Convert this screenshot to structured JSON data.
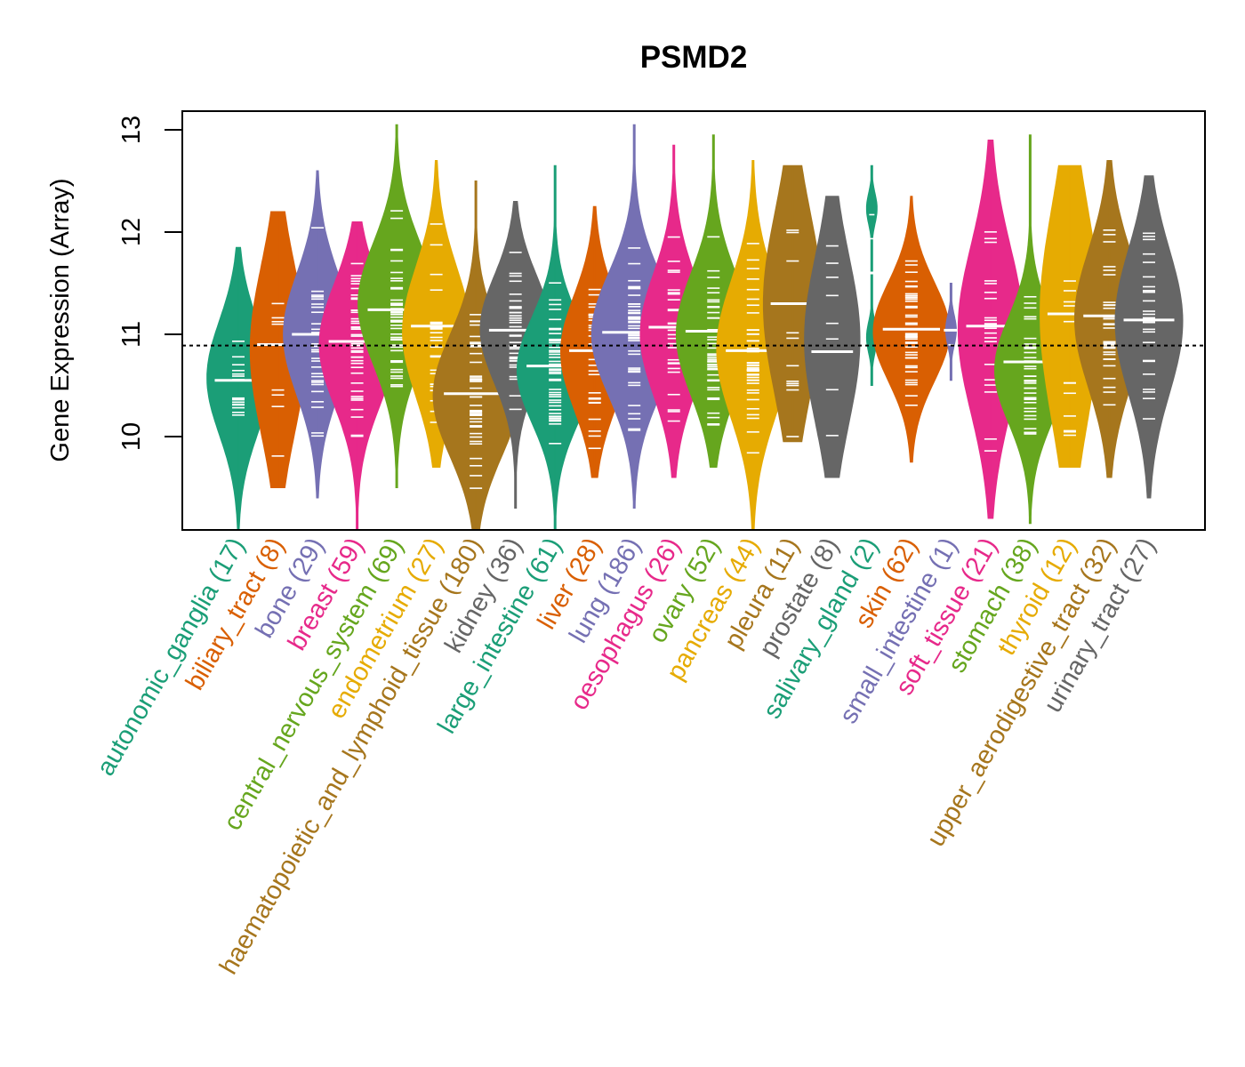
{
  "chart_data": {
    "type": "violin",
    "title": "PSMD2",
    "xlabel": "",
    "ylabel": "Gene Expression (Array)",
    "ylim": [
      9.1,
      13.2
    ],
    "yticks": [
      10,
      11,
      12,
      13
    ],
    "reference_line": 10.89,
    "grid": false,
    "legend": "none",
    "categories": [
      {
        "name": "autonomic_ganglia",
        "n": 17,
        "label": "autonomic_ganglia (17)",
        "color": "#1B9E77",
        "min": 9.1,
        "max": 11.85,
        "median": 10.55,
        "q1": 10.2,
        "q3": 10.95
      },
      {
        "name": "biliary_tract",
        "n": 8,
        "label": "biliary_tract (8)",
        "color": "#D95F02",
        "min": 9.5,
        "max": 12.2,
        "median": 10.9,
        "q1": 10.3,
        "q3": 11.4
      },
      {
        "name": "bone",
        "n": 29,
        "label": "bone (29)",
        "color": "#7570B3",
        "min": 9.4,
        "max": 12.6,
        "median": 11.0,
        "q1": 10.6,
        "q3": 11.4
      },
      {
        "name": "breast",
        "n": 59,
        "label": "breast (59)",
        "color": "#E7298A",
        "min": 9.1,
        "max": 12.1,
        "median": 10.93,
        "q1": 10.5,
        "q3": 11.3
      },
      {
        "name": "central_nervous_system",
        "n": 69,
        "label": "central_nervous_system (69)",
        "color": "#66A61E",
        "min": 9.5,
        "max": 13.05,
        "median": 11.24,
        "q1": 10.9,
        "q3": 11.7
      },
      {
        "name": "endometrium",
        "n": 27,
        "label": "endometrium (27)",
        "color": "#E6AB02",
        "min": 9.7,
        "max": 12.7,
        "median": 11.08,
        "q1": 10.6,
        "q3": 11.45
      },
      {
        "name": "haematopoietic_and_lymphoid_tissue",
        "n": 180,
        "label": "haematopoietic_and_lymphoid_tissue (180)",
        "color": "#A6761D",
        "min": 9.1,
        "max": 12.5,
        "median": 10.42,
        "q1": 10.0,
        "q3": 10.8
      },
      {
        "name": "kidney",
        "n": 36,
        "label": "kidney (36)",
        "color": "#666666",
        "min": 9.3,
        "max": 12.3,
        "median": 11.04,
        "q1": 10.7,
        "q3": 11.4
      },
      {
        "name": "large_intestine",
        "n": 61,
        "label": "large_intestine (61)",
        "color": "#1B9E77",
        "min": 9.1,
        "max": 12.65,
        "median": 10.69,
        "q1": 10.3,
        "q3": 11.0
      },
      {
        "name": "liver",
        "n": 28,
        "label": "liver (28)",
        "color": "#D95F02",
        "min": 9.6,
        "max": 12.25,
        "median": 10.84,
        "q1": 10.45,
        "q3": 11.2
      },
      {
        "name": "lung",
        "n": 186,
        "label": "lung (186)",
        "color": "#7570B3",
        "min": 9.3,
        "max": 13.05,
        "median": 11.02,
        "q1": 10.6,
        "q3": 11.4
      },
      {
        "name": "oesophagus",
        "n": 26,
        "label": "oesophagus (26)",
        "color": "#E7298A",
        "min": 9.6,
        "max": 12.85,
        "median": 11.07,
        "q1": 10.6,
        "q3": 11.4
      },
      {
        "name": "ovary",
        "n": 52,
        "label": "ovary (52)",
        "color": "#66A61E",
        "min": 9.7,
        "max": 12.95,
        "median": 11.03,
        "q1": 10.6,
        "q3": 11.4
      },
      {
        "name": "pancreas",
        "n": 44,
        "label": "pancreas (44)",
        "color": "#E6AB02",
        "min": 9.1,
        "max": 12.7,
        "median": 10.84,
        "q1": 10.4,
        "q3": 11.3
      },
      {
        "name": "pleura",
        "n": 11,
        "label": "pleura (11)",
        "color": "#A6761D",
        "min": 9.95,
        "max": 12.65,
        "median": 11.3,
        "q1": 10.7,
        "q3": 11.9
      },
      {
        "name": "prostate",
        "n": 8,
        "label": "prostate (8)",
        "color": "#666666",
        "min": 9.6,
        "max": 12.35,
        "median": 10.83,
        "q1": 10.4,
        "q3": 11.5
      },
      {
        "name": "salivary_gland",
        "n": 2,
        "label": "salivary_gland (2)",
        "color": "#1B9E77",
        "min": 10.5,
        "max": 12.65,
        "median": 11.6,
        "q1": 10.97,
        "q3": 12.23
      },
      {
        "name": "skin",
        "n": 62,
        "label": "skin (62)",
        "color": "#D95F02",
        "min": 9.75,
        "max": 12.35,
        "median": 11.05,
        "q1": 10.7,
        "q3": 11.35
      },
      {
        "name": "small_intestine",
        "n": 1,
        "label": "small_intestine (1)",
        "color": "#7570B3",
        "min": 10.55,
        "max": 11.5,
        "median": 11.04,
        "q1": 11.04,
        "q3": 11.04
      },
      {
        "name": "soft_tissue",
        "n": 21,
        "label": "soft_tissue (21)",
        "color": "#E7298A",
        "min": 9.2,
        "max": 12.9,
        "median": 11.08,
        "q1": 10.5,
        "q3": 11.6
      },
      {
        "name": "stomach",
        "n": 38,
        "label": "stomach (38)",
        "color": "#66A61E",
        "min": 9.15,
        "max": 12.95,
        "median": 10.73,
        "q1": 10.3,
        "q3": 11.0
      },
      {
        "name": "thyroid",
        "n": 12,
        "label": "thyroid (12)",
        "color": "#E6AB02",
        "min": 9.7,
        "max": 12.65,
        "median": 11.2,
        "q1": 10.5,
        "q3": 11.9
      },
      {
        "name": "upper_aerodigestive_tract",
        "n": 32,
        "label": "upper_aerodigestive_tract (32)",
        "color": "#A6761D",
        "min": 9.6,
        "max": 12.7,
        "median": 11.18,
        "q1": 10.7,
        "q3": 11.6
      },
      {
        "name": "urinary_tract",
        "n": 27,
        "label": "urinary_tract (27)",
        "color": "#666666",
        "min": 9.4,
        "max": 12.55,
        "median": 11.14,
        "q1": 10.65,
        "q3": 11.6
      }
    ]
  }
}
